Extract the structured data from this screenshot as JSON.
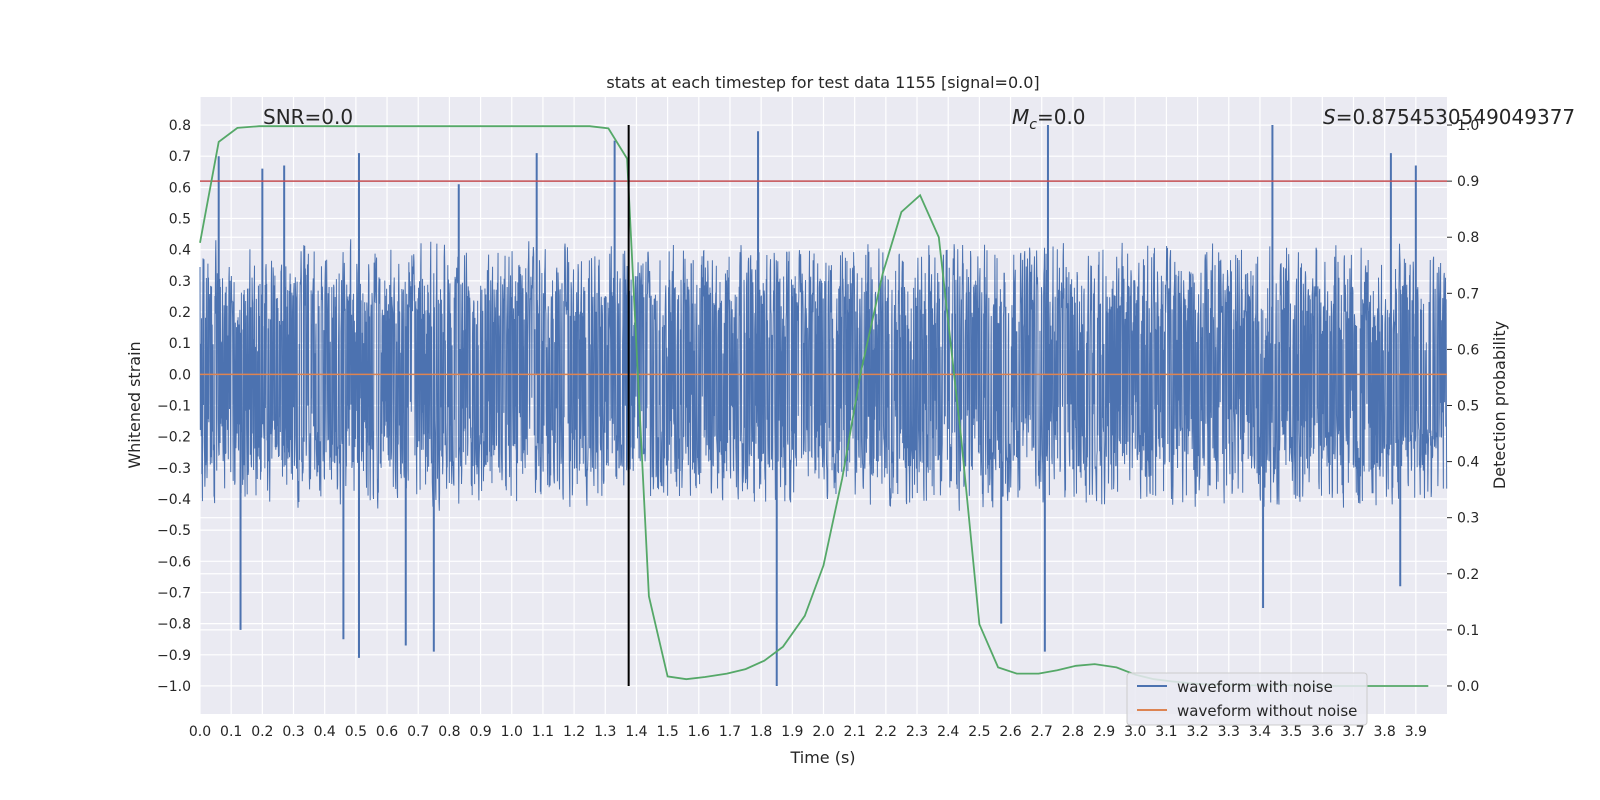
{
  "chart_data": {
    "type": "line",
    "title": "stats at each timestep for test data 1155 [signal=0.0]",
    "xlabel": "Time (s)",
    "ylabel": "Whitened strain",
    "y2label": "Detection probability",
    "xlim": [
      0.0,
      4.0
    ],
    "ylim": [
      -1.09,
      0.89
    ],
    "y2lim": [
      -0.05,
      1.05
    ],
    "xticks": [
      "0.0",
      "0.1",
      "0.2",
      "0.3",
      "0.4",
      "0.5",
      "0.6",
      "0.7",
      "0.8",
      "0.9",
      "1.0",
      "1.1",
      "1.2",
      "1.3",
      "1.4",
      "1.5",
      "1.6",
      "1.7",
      "1.8",
      "1.9",
      "2.0",
      "2.1",
      "2.2",
      "2.3",
      "2.4",
      "2.5",
      "2.6",
      "2.7",
      "2.8",
      "2.9",
      "3.0",
      "3.1",
      "3.2",
      "3.3",
      "3.4",
      "3.5",
      "3.6",
      "3.7",
      "3.8",
      "3.9"
    ],
    "yticks": [
      "0.8",
      "0.7",
      "0.6",
      "0.5",
      "0.4",
      "0.3",
      "0.2",
      "0.1",
      "0.0",
      "−0.1",
      "−0.2",
      "−0.3",
      "−0.4",
      "−0.5",
      "−0.6",
      "−0.7",
      "−0.8",
      "−0.9",
      "−1.0"
    ],
    "y2ticks": [
      "1.0",
      "0.9",
      "0.8",
      "0.7",
      "0.6",
      "0.5",
      "0.4",
      "0.3",
      "0.2",
      "0.1",
      "0.0"
    ],
    "annotations": {
      "snr": "SNR=0.0",
      "mc_symbol": "M",
      "mc_sub": "c",
      "mc_value": "=0.0",
      "s_symbol": "S",
      "s_value": "=0.8754530549049377"
    },
    "threshold_line": {
      "axis": "y2",
      "value": 0.9,
      "color": "#c44e52"
    },
    "marker_line": {
      "x": 1.375,
      "y_range": [
        -1.0,
        0.8
      ],
      "color": "#000000"
    },
    "series": [
      {
        "name": "waveform with noise",
        "color": "#4c72b0",
        "axis": "y",
        "kind": "dense noise trace, 4096 samples over 0-4 s",
        "envelope": [
          -0.45,
          0.45
        ],
        "peaks_high": [
          [
            0.06,
            0.7
          ],
          [
            0.2,
            0.66
          ],
          [
            0.27,
            0.67
          ],
          [
            0.51,
            0.71
          ],
          [
            0.83,
            0.61
          ],
          [
            1.08,
            0.71
          ],
          [
            1.33,
            0.75
          ],
          [
            1.79,
            0.78
          ],
          [
            2.72,
            0.8
          ],
          [
            3.44,
            0.8
          ],
          [
            3.82,
            0.71
          ],
          [
            3.9,
            0.67
          ]
        ],
        "peaks_low": [
          [
            0.13,
            -0.82
          ],
          [
            0.46,
            -0.85
          ],
          [
            0.51,
            -0.91
          ],
          [
            0.66,
            -0.87
          ],
          [
            0.75,
            -0.89
          ],
          [
            1.85,
            -1.0
          ],
          [
            2.71,
            -0.89
          ],
          [
            2.57,
            -0.8
          ],
          [
            3.41,
            -0.75
          ],
          [
            3.85,
            -0.68
          ]
        ]
      },
      {
        "name": "waveform without noise",
        "color": "#dd8452",
        "axis": "y",
        "x": [
          0.0,
          4.0
        ],
        "values": [
          0.0,
          0.0
        ]
      },
      {
        "name": "detection probability",
        "color": "#55a868",
        "axis": "y2",
        "x": [
          0.0,
          0.06,
          0.12,
          0.19,
          0.25,
          0.31,
          0.37,
          0.44,
          0.5,
          0.56,
          0.62,
          0.69,
          0.75,
          0.81,
          0.87,
          0.94,
          1.0,
          1.06,
          1.12,
          1.19,
          1.25,
          1.31,
          1.37,
          1.44,
          1.5,
          1.56,
          1.62,
          1.69,
          1.75,
          1.81,
          1.87,
          1.94,
          2.0,
          2.06,
          2.12,
          2.19,
          2.25,
          2.31,
          2.37,
          2.44,
          2.5,
          2.56,
          2.62,
          2.69,
          2.75,
          2.81,
          2.87,
          2.94,
          3.0,
          3.06,
          3.12,
          3.19,
          3.25,
          3.31,
          3.37,
          3.44,
          3.5,
          3.56,
          3.62,
          3.69,
          3.75,
          3.81,
          3.87,
          3.94
        ],
        "values": [
          0.79,
          0.97,
          0.995,
          0.998,
          0.998,
          0.998,
          0.998,
          0.998,
          0.998,
          0.998,
          0.998,
          0.998,
          0.998,
          0.998,
          0.998,
          0.998,
          0.998,
          0.998,
          0.998,
          0.998,
          0.998,
          0.994,
          0.94,
          0.16,
          0.017,
          0.012,
          0.016,
          0.022,
          0.03,
          0.045,
          0.07,
          0.125,
          0.215,
          0.37,
          0.56,
          0.735,
          0.845,
          0.875,
          0.8,
          0.45,
          0.11,
          0.033,
          0.022,
          0.022,
          0.028,
          0.036,
          0.039,
          0.033,
          0.02,
          0.012,
          0.008,
          0.004,
          0.002,
          0.002,
          0.001,
          0.001,
          0.001,
          0.001,
          0.0,
          0.0,
          0.0,
          0.0,
          0.0,
          0.0
        ]
      }
    ],
    "legend": {
      "position": "bottom-right",
      "entries": [
        {
          "label": "waveform with noise",
          "color": "#4c72b0"
        },
        {
          "label": "waveform without noise",
          "color": "#dd8452"
        }
      ]
    }
  }
}
